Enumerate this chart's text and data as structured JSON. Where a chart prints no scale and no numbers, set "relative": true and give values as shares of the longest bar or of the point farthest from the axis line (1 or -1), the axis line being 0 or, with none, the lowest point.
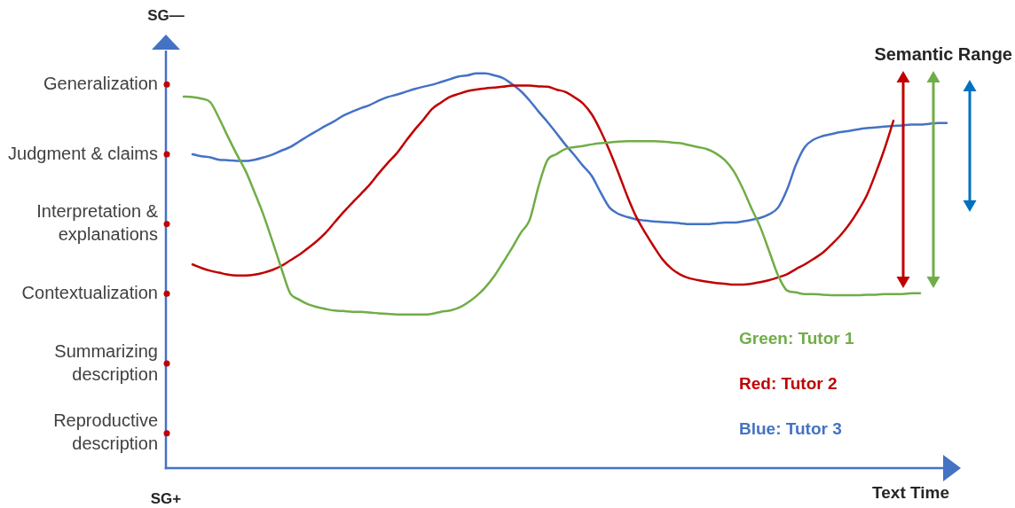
{
  "chart_data": {
    "type": "line",
    "categories": [
      null,
      null,
      null,
      null,
      null,
      null,
      null,
      null,
      null,
      null,
      null,
      null,
      null,
      null,
      null,
      null,
      null,
      null,
      null,
      null,
      null,
      null,
      null,
      null,
      null,
      null,
      null,
      null,
      null,
      null,
      null,
      null,
      null,
      null,
      null,
      null,
      null,
      null,
      null,
      null,
      null,
      null,
      null,
      null,
      null,
      null,
      null,
      null,
      null,
      null,
      null,
      null,
      null,
      null,
      null,
      null,
      null,
      null,
      null,
      null,
      null,
      null,
      null,
      null,
      null,
      null,
      null,
      null,
      null,
      null,
      null,
      null,
      null,
      null,
      null,
      null,
      null,
      null,
      null,
      null,
      null,
      null,
      null,
      null,
      null,
      null,
      null,
      null,
      null
    ],
    "y_categories": [
      "Generalization",
      "Judgment & claims",
      "Interpretation & explanations",
      "Contextualization",
      "Summarizing description",
      "Reproductive description"
    ],
    "relative": true,
    "series": [
      {
        "name": "Green: Tutor 1",
        "color": "#70ad47",
        "values": [
          null,
          null,
          0.941,
          0.94,
          0.936,
          0.927,
          0.886,
          0.839,
          0.794,
          0.752,
          0.698,
          0.641,
          0.575,
          0.507,
          0.443,
          0.427,
          0.415,
          0.408,
          0.403,
          0.399,
          0.398,
          0.396,
          0.396,
          0.394,
          0.392,
          0.391,
          0.389,
          0.389,
          0.389,
          0.389,
          0.391,
          0.396,
          0.399,
          0.406,
          0.419,
          0.436,
          0.458,
          0.486,
          0.521,
          0.557,
          0.596,
          0.629,
          0.714,
          0.78,
          0.795,
          0.808,
          0.813,
          0.816,
          0.82,
          0.823,
          0.825,
          0.827,
          0.828,
          0.828,
          0.828,
          0.828,
          0.827,
          0.825,
          0.823,
          0.818,
          0.813,
          0.808,
          0.797,
          0.78,
          0.752,
          0.709,
          0.658,
          0.61,
          0.549,
          0.488,
          0.45,
          0.445,
          0.441,
          0.441,
          0.439,
          0.438,
          0.438,
          0.438,
          0.438,
          0.439,
          0.439,
          0.441,
          0.441,
          0.441,
          0.443,
          0.443,
          null,
          null,
          null
        ]
      },
      {
        "name": "Red: Tutor 2",
        "color": "#c00000",
        "values": [
          null,
          null,
          null,
          0.516,
          0.507,
          0.5,
          0.495,
          0.49,
          0.488,
          0.488,
          0.49,
          0.495,
          0.502,
          0.512,
          0.526,
          0.54,
          0.557,
          0.575,
          0.596,
          0.622,
          0.648,
          0.672,
          0.695,
          0.719,
          0.747,
          0.773,
          0.797,
          0.827,
          0.856,
          0.882,
          0.91,
          0.926,
          0.94,
          0.948,
          0.955,
          0.959,
          0.962,
          0.964,
          0.966,
          0.969,
          0.969,
          0.969,
          0.967,
          0.966,
          0.959,
          0.953,
          0.94,
          0.924,
          0.896,
          0.854,
          0.804,
          0.748,
          0.689,
          0.637,
          0.597,
          0.561,
          0.528,
          0.505,
          0.49,
          0.481,
          0.476,
          0.472,
          0.469,
          0.467,
          0.465,
          0.465,
          0.467,
          0.471,
          0.476,
          0.483,
          0.491,
          0.504,
          0.516,
          0.53,
          0.545,
          0.566,
          0.589,
          0.617,
          0.651,
          0.691,
          0.747,
          0.809,
          0.88,
          null,
          null,
          null,
          null,
          null,
          null
        ]
      },
      {
        "name": "Blue: Tutor 3",
        "color": "#4472c4",
        "values": [
          null,
          null,
          null,
          0.795,
          0.79,
          0.787,
          0.781,
          0.78,
          0.778,
          0.778,
          0.781,
          0.787,
          0.794,
          0.804,
          0.813,
          0.827,
          0.841,
          0.854,
          0.867,
          0.879,
          0.893,
          0.903,
          0.912,
          0.92,
          0.931,
          0.94,
          0.946,
          0.953,
          0.96,
          0.966,
          0.971,
          0.978,
          0.985,
          0.992,
          0.995,
          1,
          1,
          0.995,
          0.988,
          0.973,
          0.955,
          0.931,
          0.903,
          0.877,
          0.849,
          0.82,
          0.794,
          0.766,
          0.74,
          0.698,
          0.66,
          0.644,
          0.636,
          0.63,
          0.627,
          0.625,
          0.623,
          0.622,
          0.62,
          0.618,
          0.618,
          0.618,
          0.62,
          0.622,
          0.622,
          0.625,
          0.629,
          0.634,
          0.643,
          0.66,
          0.705,
          0.768,
          0.813,
          0.832,
          0.841,
          0.846,
          0.851,
          0.854,
          0.858,
          0.861,
          0.863,
          0.865,
          0.867,
          0.868,
          0.87,
          0.87,
          0.872,
          0.874,
          0.874
        ]
      }
    ],
    "tick_labels": "y",
    "legend": "bottom right",
    "xlabel": "Text Time",
    "annotations": [
      "SG—",
      "SG+",
      "Semantic Range"
    ]
  }
}
